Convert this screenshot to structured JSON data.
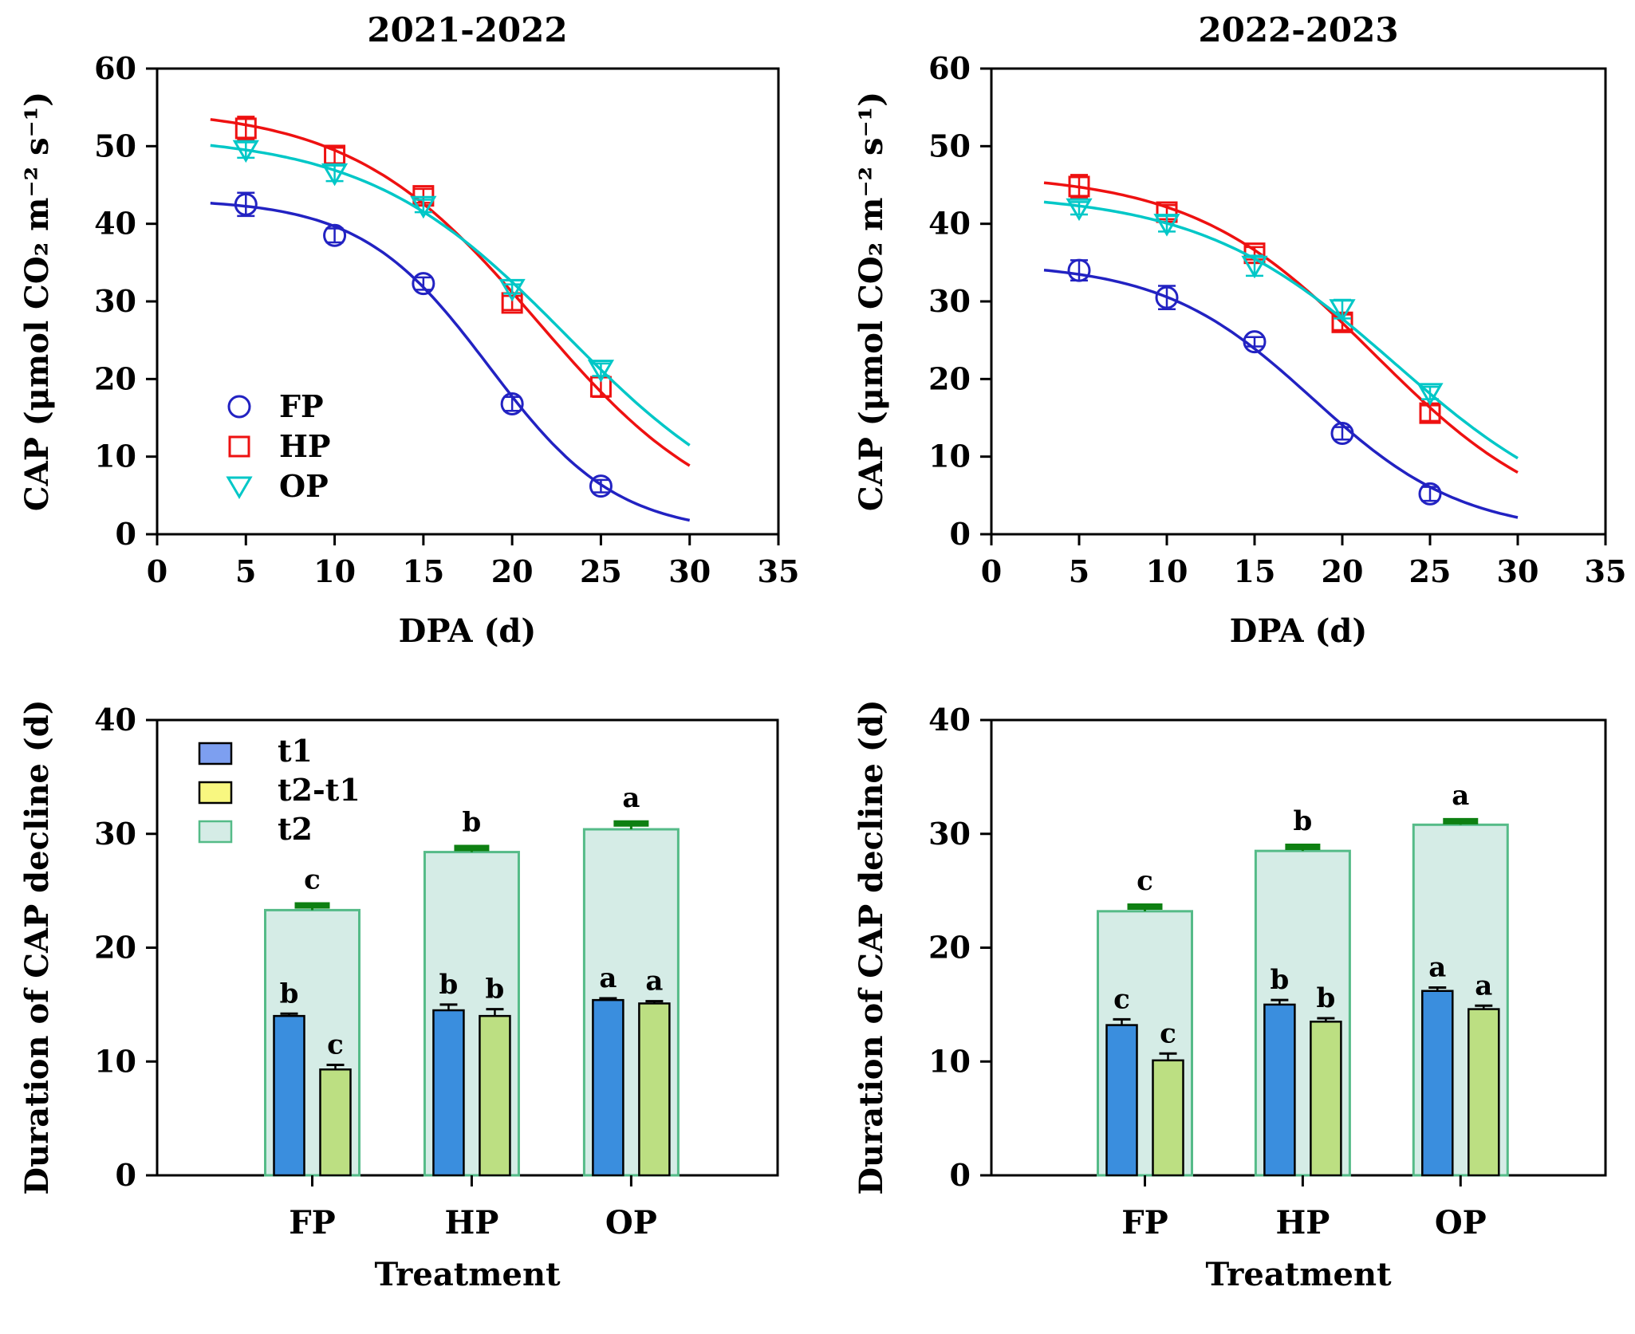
{
  "figure": {
    "background": "#ffffff",
    "description": "Four-panel figure: CAP decline curves and duration of CAP decline bars for two seasons"
  },
  "style": {
    "colors": {
      "axis": "#000000",
      "text": "#000000",
      "fp": "#2222c2",
      "hp": "#ee1111",
      "op": "#00c7c7",
      "bar_t1_fill": "#3a8ede",
      "bar_t2t1_fill": "#bcdf82",
      "bar_t2_fill": "#d5ece6",
      "bar_t2_border": "#55bb88",
      "bar_border": "#000000",
      "t2_error_cap": "#0e8012",
      "legend_t1_fill": "#7d9ff0",
      "legend_t2t1_fill": "#f8f780"
    }
  },
  "chart_data": [
    {
      "id": "cap-2021-2022",
      "type": "scatter",
      "title": "2021-2022",
      "xlabel": "DPA (d)",
      "ylabel": "CAP (μmol CO₂ m⁻² s⁻¹)",
      "xlim": [
        0,
        35
      ],
      "ylim": [
        0,
        60
      ],
      "xticks": [
        0,
        5,
        10,
        15,
        20,
        25,
        30,
        35
      ],
      "yticks": [
        0,
        10,
        20,
        30,
        40,
        50,
        60
      ],
      "grid": false,
      "legend": {
        "position": "lower-left",
        "entries": [
          "FP",
          "HP",
          "OP"
        ]
      },
      "x": [
        5,
        10,
        15,
        20,
        25
      ],
      "series": [
        {
          "name": "FP",
          "marker": "circle",
          "color": "#2222c2",
          "values": [
            42.5,
            38.5,
            32.3,
            16.8,
            6.2
          ],
          "errors": [
            1.5,
            0.9,
            0.8,
            0.9,
            0.8
          ],
          "fit": {
            "model": "logistic",
            "a": 43.2,
            "x0": 18.7,
            "b": 3.6,
            "xrange": [
              3,
              30
            ]
          }
        },
        {
          "name": "HP",
          "marker": "square",
          "color": "#ee1111",
          "values": [
            52.3,
            48.8,
            43.6,
            29.8,
            19.0
          ],
          "errors": [
            1.5,
            1.0,
            0.9,
            0.9,
            1.3
          ],
          "fit": {
            "model": "logistic",
            "a": 55.0,
            "x0": 21.4,
            "b": 5.2,
            "xrange": [
              3,
              30
            ]
          }
        },
        {
          "name": "OP",
          "marker": "triangle-down",
          "color": "#00c7c7",
          "values": [
            49.5,
            46.5,
            42.3,
            31.6,
            21.2
          ],
          "errors": [
            1.0,
            1.0,
            0.8,
            0.6,
            0.8
          ],
          "fit": {
            "model": "logistic",
            "a": 51.5,
            "x0": 23.0,
            "b": 5.6,
            "xrange": [
              3,
              30
            ]
          }
        }
      ]
    },
    {
      "id": "cap-2022-2023",
      "type": "scatter",
      "title": "2022-2023",
      "xlabel": "DPA (d)",
      "ylabel": "CAP (μmol CO₂ m⁻² s⁻¹)",
      "xlim": [
        0,
        35
      ],
      "ylim": [
        0,
        60
      ],
      "xticks": [
        0,
        5,
        10,
        15,
        20,
        25,
        30,
        35
      ],
      "yticks": [
        0,
        10,
        20,
        30,
        40,
        50,
        60
      ],
      "grid": false,
      "legend": null,
      "x": [
        5,
        10,
        15,
        20,
        25
      ],
      "series": [
        {
          "name": "FP",
          "marker": "circle",
          "color": "#2222c2",
          "values": [
            34.0,
            30.5,
            24.8,
            13.0,
            5.2
          ],
          "errors": [
            1.3,
            1.5,
            0.6,
            0.8,
            0.9
          ],
          "fit": {
            "model": "logistic",
            "a": 35.0,
            "x0": 18.3,
            "b": 4.3,
            "xrange": [
              3,
              30
            ]
          }
        },
        {
          "name": "HP",
          "marker": "square",
          "color": "#ee1111",
          "values": [
            44.8,
            41.5,
            36.2,
            27.3,
            15.6
          ],
          "errors": [
            1.5,
            0.9,
            0.8,
            1.0,
            1.0
          ],
          "fit": {
            "model": "logistic",
            "a": 46.5,
            "x0": 21.8,
            "b": 5.2,
            "xrange": [
              3,
              30
            ]
          }
        },
        {
          "name": "OP",
          "marker": "triangle-down",
          "color": "#00c7c7",
          "values": [
            42.0,
            40.0,
            34.6,
            29.0,
            18.2
          ],
          "errors": [
            0.8,
            1.0,
            1.3,
            1.2,
            0.8
          ],
          "fit": {
            "model": "logistic",
            "a": 44.0,
            "x0": 23.0,
            "b": 5.6,
            "xrange": [
              3,
              30
            ]
          }
        }
      ]
    },
    {
      "id": "duration-2021-2022",
      "type": "bar",
      "title": "",
      "xlabel": "Treatment",
      "ylabel": "Duration of CAP decline (d)",
      "ylim": [
        0,
        40
      ],
      "yticks": [
        0,
        10,
        20,
        30,
        40
      ],
      "grid": false,
      "legend": {
        "position": "upper-left",
        "entries": [
          "t1",
          "t2-t1",
          "t2"
        ]
      },
      "categories": [
        "FP",
        "HP",
        "OP"
      ],
      "series": [
        {
          "name": "t1",
          "values": [
            14.0,
            14.5,
            15.4
          ],
          "errors": [
            0.2,
            0.5,
            0.15
          ],
          "letters": [
            "b",
            "b",
            "a"
          ]
        },
        {
          "name": "t2-t1",
          "values": [
            9.3,
            14.0,
            15.1
          ],
          "errors": [
            0.4,
            0.6,
            0.2
          ],
          "letters": [
            "c",
            "b",
            "a"
          ]
        },
        {
          "name": "t2",
          "values": [
            23.3,
            28.4,
            30.4
          ],
          "errors": [
            0.2,
            0.15,
            0.3
          ],
          "letters": [
            "c",
            "b",
            "a"
          ]
        }
      ]
    },
    {
      "id": "duration-2022-2023",
      "type": "bar",
      "title": "",
      "xlabel": "Treatment",
      "ylabel": "Duration of CAP decline (d)",
      "ylim": [
        0,
        40
      ],
      "yticks": [
        0,
        10,
        20,
        30,
        40
      ],
      "grid": false,
      "legend": null,
      "categories": [
        "FP",
        "HP",
        "OP"
      ],
      "series": [
        {
          "name": "t1",
          "values": [
            13.2,
            15.0,
            16.2
          ],
          "errors": [
            0.5,
            0.4,
            0.3
          ],
          "letters": [
            "c",
            "b",
            "a"
          ]
        },
        {
          "name": "t2-t1",
          "values": [
            10.1,
            13.5,
            14.6
          ],
          "errors": [
            0.6,
            0.3,
            0.3
          ],
          "letters": [
            "c",
            "b",
            "a"
          ]
        },
        {
          "name": "t2",
          "values": [
            23.2,
            28.5,
            30.8
          ],
          "errors": [
            0.2,
            0.15,
            0.1
          ],
          "letters": [
            "c",
            "b",
            "a"
          ]
        }
      ]
    }
  ]
}
